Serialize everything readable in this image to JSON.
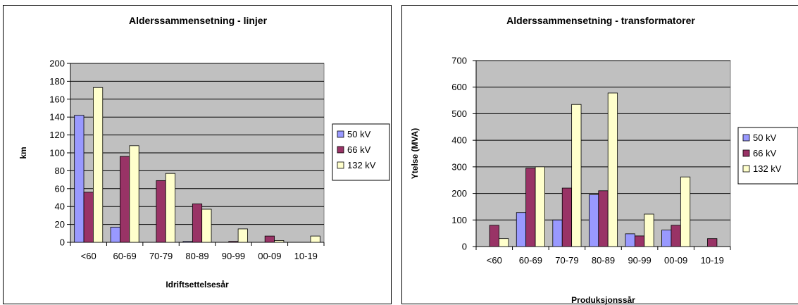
{
  "chart_data": [
    {
      "type": "bar",
      "title": "Alderssammensetning - linjer",
      "xlabel": "Idriftsettelsesår",
      "ylabel": "km",
      "categories": [
        "<60",
        "60-69",
        "70-79",
        "80-89",
        "90-99",
        "00-09",
        "10-19"
      ],
      "ylim": [
        0,
        200
      ],
      "ytick_step": 20,
      "grid": true,
      "legend": "right",
      "series": [
        {
          "name": "50 kV",
          "color": "#9999ff",
          "values": [
            142,
            17,
            0,
            1,
            0,
            0,
            0
          ]
        },
        {
          "name": "66 kV",
          "color": "#993366",
          "values": [
            56,
            96,
            69,
            43,
            1,
            7,
            0
          ]
        },
        {
          "name": "132 kV",
          "color": "#ffffcc",
          "values": [
            173,
            108,
            77,
            37,
            15,
            2,
            7
          ]
        }
      ]
    },
    {
      "type": "bar",
      "title": "Alderssammensetning - transformatorer",
      "xlabel": "Produksjonssår",
      "ylabel": "Ytelse (MVA)",
      "categories": [
        "<60",
        "60-69",
        "70-79",
        "80-89",
        "90-99",
        "00-09",
        "10-19"
      ],
      "ylim": [
        0,
        700
      ],
      "ytick_step": 100,
      "grid": true,
      "legend": "right",
      "series": [
        {
          "name": "50 kV",
          "color": "#9999ff",
          "values": [
            0,
            128,
            100,
            195,
            48,
            62,
            0
          ]
        },
        {
          "name": "66 kV",
          "color": "#993366",
          "values": [
            80,
            295,
            220,
            210,
            40,
            80,
            30
          ]
        },
        {
          "name": "132 kV",
          "color": "#ffffcc",
          "values": [
            30,
            300,
            535,
            578,
            122,
            262,
            0
          ]
        }
      ]
    }
  ],
  "colors": {
    "plot_background": "#c0c0c0",
    "gridline": "#000000"
  }
}
